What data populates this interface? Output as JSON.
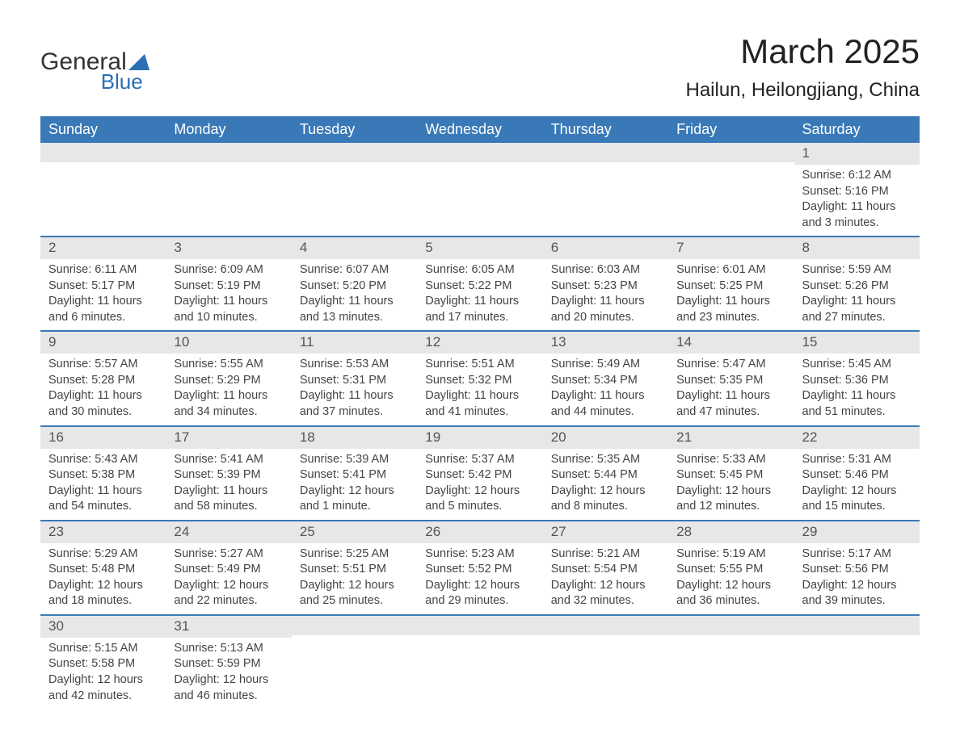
{
  "brand": {
    "name_left": "General",
    "name_right": "Blue"
  },
  "title": "March 2025",
  "location": "Hailun, Heilongjiang, China",
  "colors": {
    "header_bg": "#3a79b7",
    "header_text": "#ffffff",
    "daynum_bg": "#e7e7e7",
    "row_border": "#3a79b7",
    "body_text": "#444444",
    "logo_blue": "#2d6fb5",
    "page_bg": "#ffffff"
  },
  "columns": [
    "Sunday",
    "Monday",
    "Tuesday",
    "Wednesday",
    "Thursday",
    "Friday",
    "Saturday"
  ],
  "weeks": [
    [
      null,
      null,
      null,
      null,
      null,
      null,
      {
        "n": "1",
        "sunrise": "6:12 AM",
        "sunset": "5:16 PM",
        "day_h": "11",
        "day_m": "3"
      }
    ],
    [
      {
        "n": "2",
        "sunrise": "6:11 AM",
        "sunset": "5:17 PM",
        "day_h": "11",
        "day_m": "6"
      },
      {
        "n": "3",
        "sunrise": "6:09 AM",
        "sunset": "5:19 PM",
        "day_h": "11",
        "day_m": "10"
      },
      {
        "n": "4",
        "sunrise": "6:07 AM",
        "sunset": "5:20 PM",
        "day_h": "11",
        "day_m": "13"
      },
      {
        "n": "5",
        "sunrise": "6:05 AM",
        "sunset": "5:22 PM",
        "day_h": "11",
        "day_m": "17"
      },
      {
        "n": "6",
        "sunrise": "6:03 AM",
        "sunset": "5:23 PM",
        "day_h": "11",
        "day_m": "20"
      },
      {
        "n": "7",
        "sunrise": "6:01 AM",
        "sunset": "5:25 PM",
        "day_h": "11",
        "day_m": "23"
      },
      {
        "n": "8",
        "sunrise": "5:59 AM",
        "sunset": "5:26 PM",
        "day_h": "11",
        "day_m": "27"
      }
    ],
    [
      {
        "n": "9",
        "sunrise": "5:57 AM",
        "sunset": "5:28 PM",
        "day_h": "11",
        "day_m": "30"
      },
      {
        "n": "10",
        "sunrise": "5:55 AM",
        "sunset": "5:29 PM",
        "day_h": "11",
        "day_m": "34"
      },
      {
        "n": "11",
        "sunrise": "5:53 AM",
        "sunset": "5:31 PM",
        "day_h": "11",
        "day_m": "37"
      },
      {
        "n": "12",
        "sunrise": "5:51 AM",
        "sunset": "5:32 PM",
        "day_h": "11",
        "day_m": "41"
      },
      {
        "n": "13",
        "sunrise": "5:49 AM",
        "sunset": "5:34 PM",
        "day_h": "11",
        "day_m": "44"
      },
      {
        "n": "14",
        "sunrise": "5:47 AM",
        "sunset": "5:35 PM",
        "day_h": "11",
        "day_m": "47"
      },
      {
        "n": "15",
        "sunrise": "5:45 AM",
        "sunset": "5:36 PM",
        "day_h": "11",
        "day_m": "51"
      }
    ],
    [
      {
        "n": "16",
        "sunrise": "5:43 AM",
        "sunset": "5:38 PM",
        "day_h": "11",
        "day_m": "54"
      },
      {
        "n": "17",
        "sunrise": "5:41 AM",
        "sunset": "5:39 PM",
        "day_h": "11",
        "day_m": "58"
      },
      {
        "n": "18",
        "sunrise": "5:39 AM",
        "sunset": "5:41 PM",
        "day_h": "12",
        "day_m": "1"
      },
      {
        "n": "19",
        "sunrise": "5:37 AM",
        "sunset": "5:42 PM",
        "day_h": "12",
        "day_m": "5"
      },
      {
        "n": "20",
        "sunrise": "5:35 AM",
        "sunset": "5:44 PM",
        "day_h": "12",
        "day_m": "8"
      },
      {
        "n": "21",
        "sunrise": "5:33 AM",
        "sunset": "5:45 PM",
        "day_h": "12",
        "day_m": "12"
      },
      {
        "n": "22",
        "sunrise": "5:31 AM",
        "sunset": "5:46 PM",
        "day_h": "12",
        "day_m": "15"
      }
    ],
    [
      {
        "n": "23",
        "sunrise": "5:29 AM",
        "sunset": "5:48 PM",
        "day_h": "12",
        "day_m": "18"
      },
      {
        "n": "24",
        "sunrise": "5:27 AM",
        "sunset": "5:49 PM",
        "day_h": "12",
        "day_m": "22"
      },
      {
        "n": "25",
        "sunrise": "5:25 AM",
        "sunset": "5:51 PM",
        "day_h": "12",
        "day_m": "25"
      },
      {
        "n": "26",
        "sunrise": "5:23 AM",
        "sunset": "5:52 PM",
        "day_h": "12",
        "day_m": "29"
      },
      {
        "n": "27",
        "sunrise": "5:21 AM",
        "sunset": "5:54 PM",
        "day_h": "12",
        "day_m": "32"
      },
      {
        "n": "28",
        "sunrise": "5:19 AM",
        "sunset": "5:55 PM",
        "day_h": "12",
        "day_m": "36"
      },
      {
        "n": "29",
        "sunrise": "5:17 AM",
        "sunset": "5:56 PM",
        "day_h": "12",
        "day_m": "39"
      }
    ],
    [
      {
        "n": "30",
        "sunrise": "5:15 AM",
        "sunset": "5:58 PM",
        "day_h": "12",
        "day_m": "42"
      },
      {
        "n": "31",
        "sunrise": "5:13 AM",
        "sunset": "5:59 PM",
        "day_h": "12",
        "day_m": "46"
      },
      null,
      null,
      null,
      null,
      null
    ]
  ],
  "labels": {
    "sunrise": "Sunrise: ",
    "sunset": "Sunset: ",
    "daylight_prefix": "Daylight: ",
    "hours_word": " hours",
    "and_word": "and ",
    "minute_word": " minute.",
    "minutes_word": " minutes."
  },
  "typography": {
    "title_fontsize": 42,
    "location_fontsize": 24,
    "header_fontsize": 18,
    "daynum_fontsize": 17,
    "body_fontsize": 14.5
  }
}
